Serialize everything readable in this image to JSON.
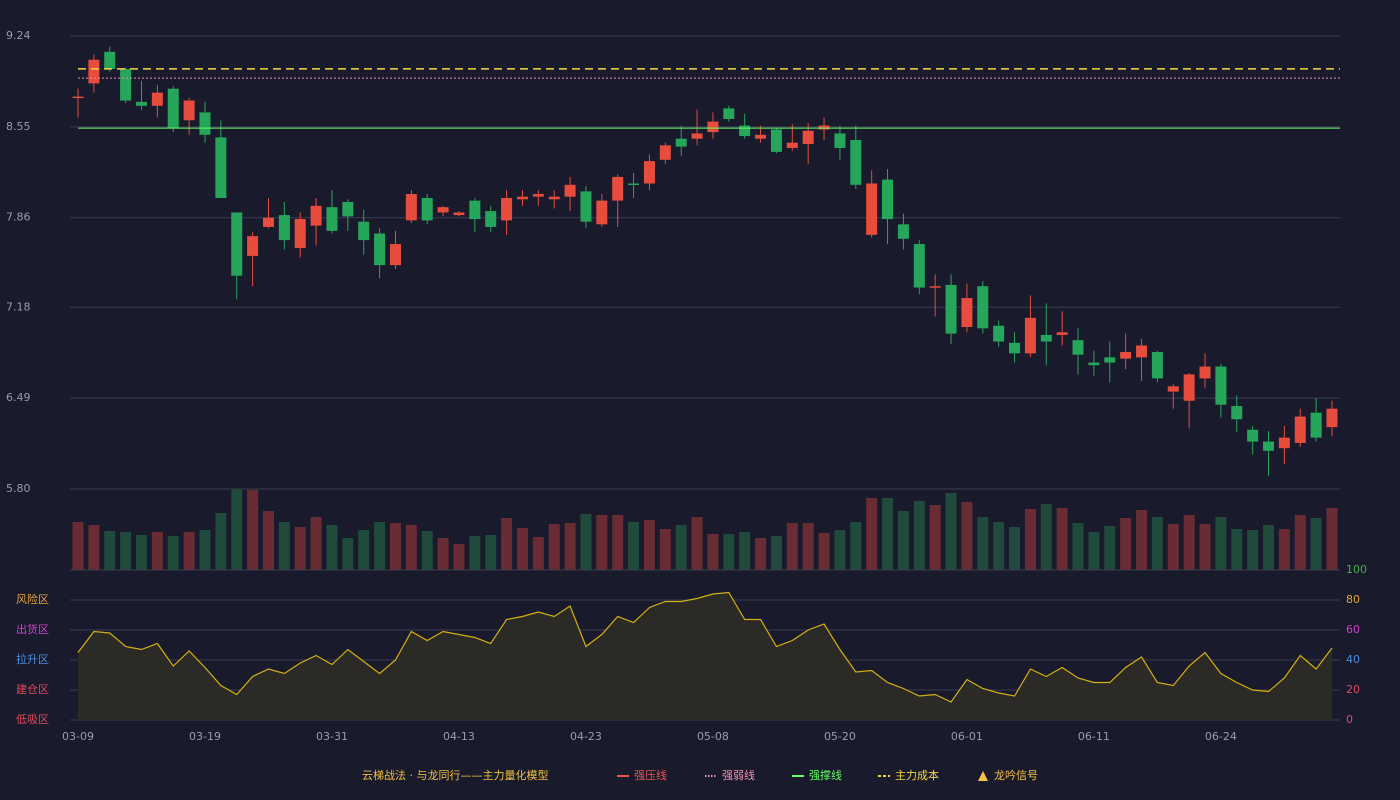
{
  "chart_data": [
    {
      "type": "candlestick",
      "ylim": [
        5.8,
        9.24
      ],
      "yticks": [
        {
          "value": 5.8,
          "label": "5.80"
        },
        6.49,
        7.18,
        7.86,
        8.55,
        9.24
      ],
      "grid": true,
      "up_color": "#e74c3c",
      "down_color": "#26a65b",
      "open": [
        8.77,
        8.88,
        9.12,
        8.99,
        8.74,
        8.71,
        8.84,
        8.6,
        8.66,
        8.47,
        7.9,
        7.57,
        7.79,
        7.88,
        7.63,
        7.8,
        7.94,
        7.98,
        7.83,
        7.74,
        7.5,
        7.84,
        8.01,
        7.9,
        7.88,
        7.99,
        7.91,
        7.84,
        8.0,
        8.02,
        8.0,
        8.02,
        8.06,
        7.81,
        7.99,
        8.12,
        8.12,
        8.3,
        8.46,
        8.46,
        8.51,
        8.69,
        8.56,
        8.46,
        8.53,
        8.39,
        8.42,
        8.53,
        8.5,
        8.45,
        7.73,
        8.15,
        7.81,
        7.66,
        7.33,
        7.35,
        7.03,
        7.34,
        7.04,
        6.91,
        6.83,
        6.97,
        6.97,
        6.93,
        6.76,
        6.8,
        6.79,
        6.8,
        6.84,
        6.54,
        6.47,
        6.64,
        6.73,
        6.43,
        6.25,
        6.16,
        6.11,
        6.15,
        6.38,
        6.27
      ],
      "high": [
        8.84,
        9.1,
        9.16,
        9.0,
        8.9,
        8.87,
        8.86,
        8.77,
        8.74,
        8.6,
        7.9,
        7.75,
        8.01,
        7.98,
        7.9,
        8.01,
        8.07,
        8.0,
        7.92,
        7.78,
        7.76,
        8.07,
        8.04,
        7.95,
        7.91,
        8.01,
        7.95,
        8.07,
        8.07,
        8.07,
        8.07,
        8.17,
        8.1,
        8.04,
        8.19,
        8.2,
        8.34,
        8.43,
        8.56,
        8.68,
        8.66,
        8.71,
        8.65,
        8.56,
        8.54,
        8.57,
        8.58,
        8.62,
        8.56,
        8.56,
        8.22,
        8.23,
        7.89,
        7.69,
        7.43,
        7.43,
        7.36,
        7.38,
        7.08,
        6.99,
        7.27,
        7.21,
        7.15,
        7.02,
        6.85,
        6.92,
        6.98,
        6.94,
        6.85,
        6.6,
        6.68,
        6.83,
        6.75,
        6.51,
        6.28,
        6.24,
        6.28,
        6.41,
        6.49,
        6.47
      ],
      "low": [
        8.62,
        8.81,
        8.97,
        8.73,
        8.68,
        8.62,
        8.51,
        8.49,
        8.43,
        8.01,
        7.24,
        7.34,
        7.78,
        7.62,
        7.56,
        7.65,
        7.74,
        7.76,
        7.58,
        7.4,
        7.47,
        7.82,
        7.81,
        7.87,
        7.87,
        7.75,
        7.75,
        7.73,
        7.95,
        7.95,
        7.93,
        7.91,
        7.78,
        7.79,
        7.79,
        8.01,
        8.07,
        8.27,
        8.33,
        8.41,
        8.46,
        8.59,
        8.46,
        8.43,
        8.35,
        8.37,
        8.27,
        8.45,
        8.3,
        8.08,
        7.71,
        7.66,
        7.62,
        7.28,
        7.11,
        6.9,
        6.99,
        6.98,
        6.88,
        6.76,
        6.8,
        6.74,
        6.89,
        6.67,
        6.66,
        6.61,
        6.71,
        6.62,
        6.61,
        6.41,
        6.26,
        6.57,
        6.34,
        6.23,
        6.06,
        5.9,
        5.99,
        6.12,
        6.16,
        6.2
      ],
      "close": [
        8.78,
        9.06,
        8.99,
        8.75,
        8.71,
        8.81,
        8.54,
        8.75,
        8.49,
        8.01,
        7.42,
        7.72,
        7.86,
        7.69,
        7.85,
        7.95,
        7.76,
        7.87,
        7.69,
        7.5,
        7.66,
        8.04,
        7.84,
        7.94,
        7.9,
        7.85,
        7.79,
        8.01,
        8.02,
        8.04,
        8.02,
        8.11,
        7.83,
        7.99,
        8.17,
        8.11,
        8.29,
        8.41,
        8.4,
        8.5,
        8.59,
        8.61,
        8.48,
        8.49,
        8.36,
        8.43,
        8.52,
        8.56,
        8.39,
        8.11,
        8.12,
        7.85,
        7.7,
        7.33,
        7.34,
        6.98,
        7.25,
        7.02,
        6.92,
        6.83,
        7.1,
        6.92,
        6.99,
        6.82,
        6.74,
        6.76,
        6.84,
        6.89,
        6.64,
        6.58,
        6.67,
        6.73,
        6.44,
        6.33,
        6.16,
        6.09,
        6.19,
        6.35,
        6.19,
        6.41
      ],
      "lines": [
        {
          "name": "强压线",
          "color": "#ef5350",
          "style": "solid"
        },
        {
          "name": "强弱线",
          "color": "#f48fb1",
          "style": "dotted",
          "value": 8.92
        },
        {
          "name": "强撑线",
          "color": "#66ff66",
          "style": "solid",
          "value": 8.54
        },
        {
          "name": "主力成本",
          "color": "#f5d742",
          "style": "dashed",
          "value": 8.99
        },
        {
          "name": "龙吟信号",
          "color": "#f5c242",
          "style": "triangle"
        }
      ],
      "legend_title": "云梯战法 · 与龙同行——主力量化模型"
    },
    {
      "type": "bar",
      "up_color": "#6a2c34",
      "down_color": "#1f4a3c",
      "values": [
        48,
        45,
        39,
        38,
        35,
        38,
        34,
        38,
        40,
        57,
        81,
        80,
        59,
        48,
        43,
        53,
        45,
        32,
        40,
        48,
        47,
        45,
        39,
        32,
        26,
        34,
        35,
        52,
        42,
        33,
        46,
        47,
        56,
        55,
        55,
        48,
        50,
        41,
        45,
        53,
        36,
        36,
        38,
        32,
        34,
        47,
        47,
        37,
        40,
        48,
        72,
        72,
        59,
        69,
        65,
        77,
        68,
        53,
        48,
        43,
        61,
        66,
        62,
        47,
        38,
        44,
        52,
        60,
        53,
        46,
        55,
        46,
        53,
        41,
        40,
        45,
        41,
        55,
        52,
        62
      ]
    },
    {
      "type": "line",
      "color": "#d4b012",
      "fill": "#2c2a27",
      "ylim": [
        0,
        100
      ],
      "yticks": [
        0,
        20,
        40,
        60,
        80,
        100
      ],
      "tick_colors": [
        "#e04a5a",
        "#e04a5a",
        "#4a90e2",
        "#d040d0",
        "#e6a23c",
        "#4caf50"
      ],
      "zones": [
        {
          "label": "低吸区",
          "value": 0,
          "color": "#e04a5a"
        },
        {
          "label": "建仓区",
          "value": 20,
          "color": "#e04a5a"
        },
        {
          "label": "拉升区",
          "value": 40,
          "color": "#4a90e2"
        },
        {
          "label": "出货区",
          "value": 60,
          "color": "#d040d0"
        },
        {
          "label": "风险区",
          "value": 80,
          "color": "#e6a23c"
        }
      ],
      "categories": [
        "03-09",
        null,
        null,
        null,
        null,
        null,
        null,
        null,
        "03-19",
        null,
        null,
        null,
        null,
        null,
        null,
        null,
        "03-31",
        null,
        null,
        null,
        null,
        null,
        null,
        null,
        "04-13",
        null,
        null,
        null,
        null,
        null,
        null,
        null,
        "04-23",
        null,
        null,
        null,
        null,
        null,
        null,
        null,
        "05-08",
        null,
        null,
        null,
        null,
        null,
        null,
        null,
        "05-20",
        null,
        null,
        null,
        null,
        null,
        null,
        null,
        "06-01",
        null,
        null,
        null,
        null,
        null,
        null,
        null,
        "06-11",
        null,
        null,
        null,
        null,
        null,
        null,
        null,
        "06-24",
        null,
        null,
        null,
        null,
        null,
        null,
        null
      ],
      "values": [
        45,
        59,
        58,
        49,
        47,
        51,
        36,
        46,
        35,
        23,
        17,
        29,
        34,
        31,
        38,
        43,
        37,
        47,
        39,
        31,
        40,
        59,
        53,
        59,
        57,
        55,
        51,
        67,
        69,
        72,
        69,
        76,
        49,
        57,
        69,
        65,
        75,
        79,
        79,
        81,
        84,
        85,
        67,
        67,
        49,
        53,
        60,
        64,
        47,
        32,
        33,
        25,
        21,
        16,
        17,
        12,
        27,
        21,
        18,
        16,
        34,
        29,
        35,
        28,
        25,
        25,
        35,
        42,
        25,
        23,
        36,
        45,
        31,
        25,
        20,
        19,
        28,
        43,
        34,
        48
      ]
    }
  ]
}
